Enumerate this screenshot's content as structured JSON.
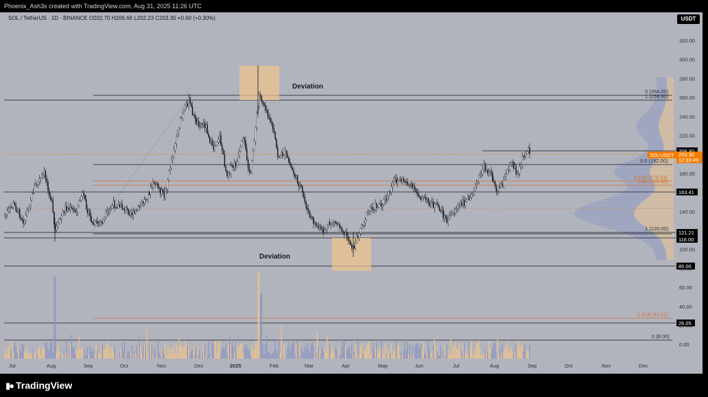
{
  "header": {
    "caption": "Phoenix_Ash3s created with TradingView.com, Aug 31, 2025 11:26 UTC"
  },
  "symbol": {
    "line": "SOL / TetherUS · 1D · BINANCE  O202.70  H206.66  L202.23  C203.30  +0.60 (+0.30%)"
  },
  "currency_button": "USDT",
  "y_ticks": [
    "320.00",
    "300.00",
    "280.00",
    "260.00",
    "240.00",
    "220.00",
    "200.00",
    "180.00",
    "160.00",
    "140.00",
    "120.00",
    "100.00",
    "80.00",
    "60.00",
    "40.00",
    "20.00",
    "0.00"
  ],
  "x_ticks": [
    "Jul",
    "Aug",
    "Sep",
    "Oct",
    "Nov",
    "Dec",
    "2025",
    "Feb",
    "Mar",
    "Apr",
    "May",
    "Jun",
    "Jul",
    "Aug",
    "Sep",
    "Oct",
    "Nov",
    "Dec"
  ],
  "annotations": {
    "top": "Deviation",
    "bottom": "Deviation"
  },
  "fib_labels": {
    "f0": "0 (264.00)",
    "f1": "1 (259.90)",
    "f05": "0.5 (192.00)",
    "f0618": "0.618 (175.01)",
    "f065": "0.65 (170.40)",
    "f1b": "1 (120.00)",
    "f1618v": "1.618 (31.01)",
    "f0v": "0 (8.00)"
  },
  "price_tags": {
    "t20630": "206.30",
    "symbol": "SOLUSDT",
    "last": "203.30",
    "timer": "12:33:49",
    "t16341": "163.41",
    "t12121": "121.21",
    "t11600": "116.00",
    "t8500": "85.00",
    "t2605": "26.05"
  },
  "colors": {
    "background": "#b1b4bd",
    "candle": "#131722",
    "fib": "#d2702e",
    "price_tag": "#f57c00",
    "deviation_box": "#f0c48a",
    "volume_up": "#f0c48a",
    "volume_down": "#8a94c4"
  },
  "footer": {
    "brand": "TradingView",
    "logo_icon": "tradingview-logo-icon"
  }
}
